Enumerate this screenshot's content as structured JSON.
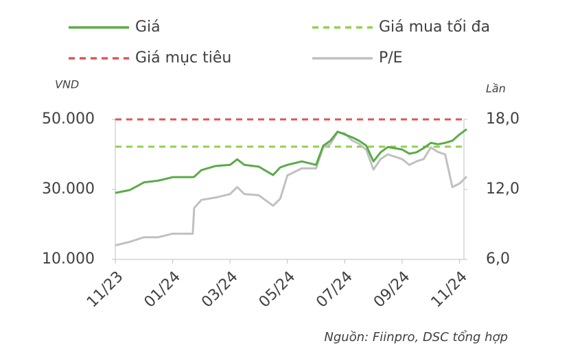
{
  "chart_data": {
    "type": "line",
    "y_label": "VND",
    "y2_label": "Lần",
    "source": "Nguồn: Fiinpro, DSC tổng hợp",
    "x": [
      0,
      0.5,
      1,
      1.5,
      2,
      2.5,
      2.7,
      2.75,
      3,
      3.5,
      4,
      4.25,
      4.5,
      5,
      5.5,
      5.75,
      6,
      6.5,
      7,
      7.25,
      7.5,
      7.75,
      8,
      8.25,
      8.5,
      8.75,
      9,
      9.25,
      9.5,
      10,
      10.25,
      10.5,
      10.75,
      11,
      11.25,
      11.5,
      11.75,
      12,
      12.25
    ],
    "xlim": [
      0,
      12.25
    ],
    "xticks": [
      {
        "value": 0,
        "label": "11/23"
      },
      {
        "value": 2,
        "label": "01/24"
      },
      {
        "value": 4,
        "label": "03/24"
      },
      {
        "value": 6,
        "label": "05/24"
      },
      {
        "value": 8,
        "label": "07/24"
      },
      {
        "value": 10,
        "label": "09/24"
      },
      {
        "value": 12,
        "label": "11/24"
      }
    ],
    "ylim": [
      10000,
      50000
    ],
    "yticks": [
      {
        "value": 10000,
        "label": "10.000"
      },
      {
        "value": 30000,
        "label": "30.000"
      },
      {
        "value": 50000,
        "label": "50.000"
      }
    ],
    "y2lim": [
      6,
      18
    ],
    "y2ticks": [
      {
        "value": 6,
        "label": "6,0"
      },
      {
        "value": 12,
        "label": "12,0"
      },
      {
        "value": 18,
        "label": "18,0"
      }
    ],
    "series": [
      {
        "name": "Giá",
        "color": "#5aab47",
        "values": [
          29000,
          29800,
          32000,
          32500,
          33500,
          33500,
          33500,
          33600,
          35500,
          36700,
          37000,
          38600,
          37000,
          36500,
          34100,
          36300,
          37000,
          38000,
          37000,
          42500,
          43900,
          46500,
          45700,
          44900,
          43900,
          42500,
          38000,
          40600,
          42100,
          41400,
          40200,
          40600,
          41800,
          43300,
          42900,
          43300,
          43900,
          45700,
          47200
        ]
      },
      {
        "name": "Giá mua tối đa",
        "color": "#92d050",
        "dashed": true,
        "value": 42200
      },
      {
        "name": "Giá mục tiêu",
        "color": "#e05555",
        "dashed": true,
        "value": 50000
      },
      {
        "name": "P/E",
        "color": "#c0c0c0",
        "axis": "y2",
        "values": [
          7.2,
          7.5,
          7.9,
          7.9,
          8.2,
          8.2,
          8.2,
          10.4,
          11.1,
          11.3,
          11.6,
          12.2,
          11.6,
          11.5,
          10.6,
          11.2,
          13.2,
          13.8,
          13.8,
          15.6,
          15.9,
          16.9,
          16.8,
          16.2,
          15.9,
          15.4,
          13.7,
          14.6,
          15.0,
          14.6,
          14.1,
          14.4,
          14.6,
          15.6,
          15.2,
          15.0,
          12.2,
          12.5,
          13.1
        ]
      }
    ]
  }
}
